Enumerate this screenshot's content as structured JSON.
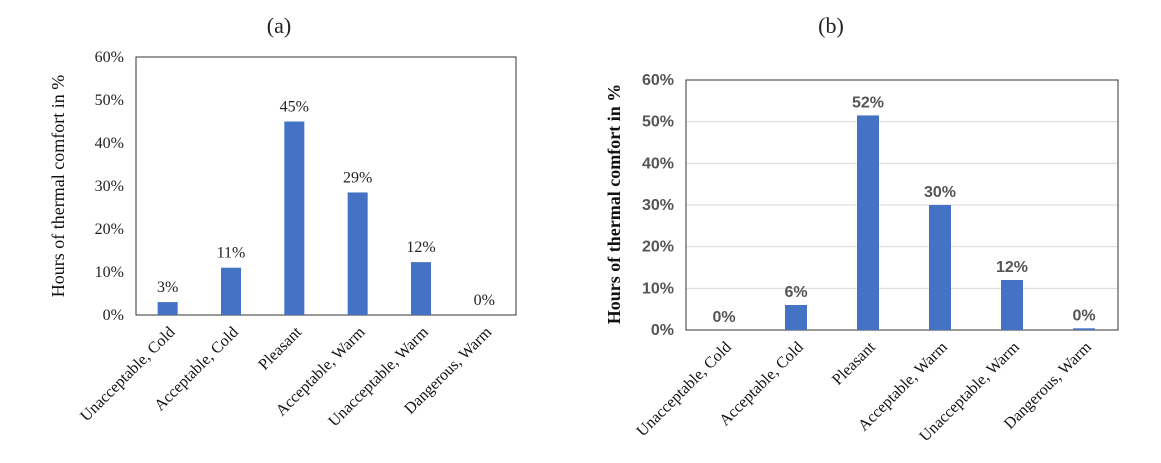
{
  "chart_data": [
    {
      "type": "bar",
      "title": "(a)",
      "ylabel": "Hours of thermal comfort in %",
      "categories": [
        "Unacceptable, Cold",
        "Acceptable, Cold",
        "Pleasant",
        "Acceptable, Warm",
        "Unacceptable, Warm",
        "Dangerous, Warm"
      ],
      "values": [
        3,
        11,
        45,
        29,
        12,
        0
      ],
      "bar_values": [
        3,
        11,
        45,
        28.5,
        12.3,
        0
      ],
      "data_labels": [
        "3%",
        "11%",
        "45%",
        "29%",
        "12%",
        "0%"
      ],
      "ylim": [
        0,
        60
      ],
      "yticks": [
        "0%",
        "10%",
        "20%",
        "30%",
        "40%",
        "50%",
        "60%"
      ],
      "grid": false,
      "bar_color": "#4472C4"
    },
    {
      "type": "bar",
      "title": "(b)",
      "ylabel": "Hours of thermal comfort in %",
      "categories": [
        "Unacceptable, Cold",
        "Acceptable, Cold",
        "Pleasant",
        "Acceptable, Warm",
        "Unacceptable, Warm",
        "Dangerous, Warm"
      ],
      "values": [
        0,
        6,
        52,
        30,
        12,
        0
      ],
      "bar_values": [
        0,
        6,
        51.5,
        30,
        12,
        0.4
      ],
      "data_labels": [
        "0%",
        "6%",
        "52%",
        "30%",
        "12%",
        "0%"
      ],
      "ylim": [
        0,
        60
      ],
      "yticks": [
        "0%",
        "10%",
        "20%",
        "30%",
        "40%",
        "50%",
        "60%"
      ],
      "grid": true,
      "bar_color": "#4472C4"
    }
  ]
}
